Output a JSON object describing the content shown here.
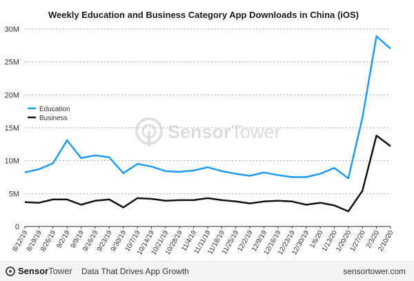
{
  "chart_data": {
    "type": "line",
    "title": "Weekly Education and Business Category App Downloads in China (iOS)",
    "xlabel": "",
    "ylabel": "",
    "x": [
      "8/12/19",
      "8/19/19",
      "8/26/19",
      "9/2/19",
      "9/9/19",
      "9/16/19",
      "9/23/19",
      "9/30/19",
      "10/7/19",
      "10/14/19",
      "10/21/19",
      "10/28/19",
      "11/4/19",
      "11/11/19",
      "11/18/19",
      "11/25/19",
      "12/2/19",
      "12/9/19",
      "12/16/19",
      "12/23/19",
      "12/30/19",
      "1/6/20",
      "1/13/20",
      "1/20/20",
      "1/27/20",
      "2/3/20",
      "2/10/20"
    ],
    "y_ticks": [
      "0",
      "5M",
      "10M",
      "15M",
      "20M",
      "25M",
      "30M"
    ],
    "ylim": [
      0,
      30
    ],
    "y_unit": "M",
    "grid": true,
    "legend_position": "left",
    "series": [
      {
        "name": "Education",
        "color": "#1e9bf0",
        "values": [
          8.2,
          8.7,
          9.6,
          13.1,
          10.4,
          10.8,
          10.5,
          8.1,
          9.5,
          9.1,
          8.4,
          8.3,
          8.5,
          9.0,
          8.4,
          8.0,
          7.7,
          8.2,
          7.8,
          7.5,
          7.5,
          8.0,
          8.9,
          7.3,
          16.5,
          28.9,
          27.0
        ]
      },
      {
        "name": "Business",
        "color": "#111111",
        "values": [
          3.7,
          3.6,
          4.1,
          4.1,
          3.3,
          3.9,
          4.1,
          2.9,
          4.3,
          4.2,
          3.9,
          4.0,
          4.0,
          4.3,
          4.0,
          3.8,
          3.5,
          3.8,
          3.9,
          3.8,
          3.3,
          3.6,
          3.2,
          2.3,
          5.4,
          13.8,
          12.2
        ]
      }
    ]
  },
  "watermark": {
    "brand_first": "Sensor",
    "brand_second": "Tower",
    "icon": "sensor-tower-logo-icon"
  },
  "footer": {
    "brand_first": "Sensor",
    "brand_second": "Tower",
    "tagline": "Data That Drives App Growth",
    "url": "sensortower.com"
  }
}
